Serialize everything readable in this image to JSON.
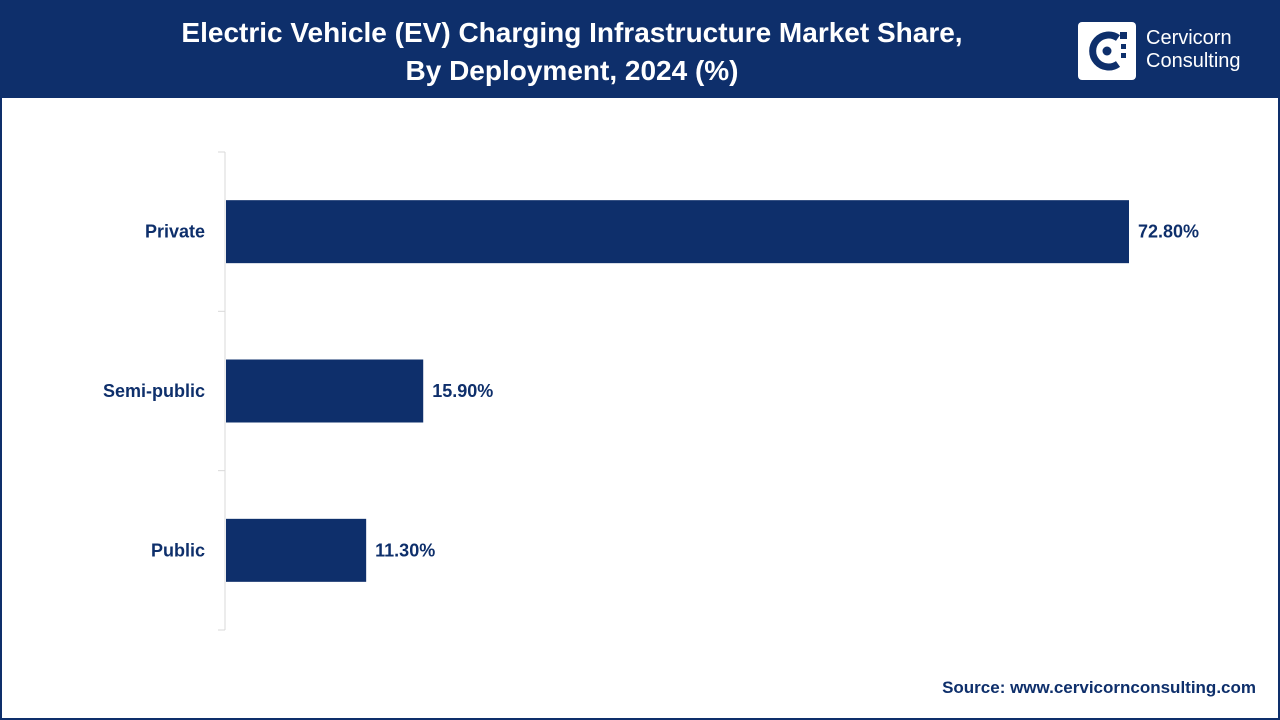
{
  "header": {
    "title_line1": "Electric Vehicle (EV) Charging Infrastructure Market Share,",
    "title_line2": "By Deployment, 2024 (%)"
  },
  "logo": {
    "line1": "Cervicorn",
    "line2": "Consulting",
    "icon": "cervicorn-logo-icon"
  },
  "colors": {
    "brand": "#0e2f6b",
    "bar": "#0e2f6b",
    "background": "#ffffff"
  },
  "chart_data": {
    "type": "bar",
    "orientation": "horizontal",
    "title": "Electric Vehicle (EV) Charging Infrastructure Market Share, By Deployment, 2024 (%)",
    "categories": [
      "Private",
      "Semi-public",
      "Public"
    ],
    "values": [
      72.8,
      15.9,
      11.3
    ],
    "data_labels": [
      "72.80%",
      "15.90%",
      "11.30%"
    ],
    "xlabel": "",
    "ylabel": "",
    "xlim": [
      0,
      80
    ],
    "grid": false,
    "legend": "none"
  },
  "footer": {
    "source": "Source: www.cervicornconsulting.com"
  }
}
